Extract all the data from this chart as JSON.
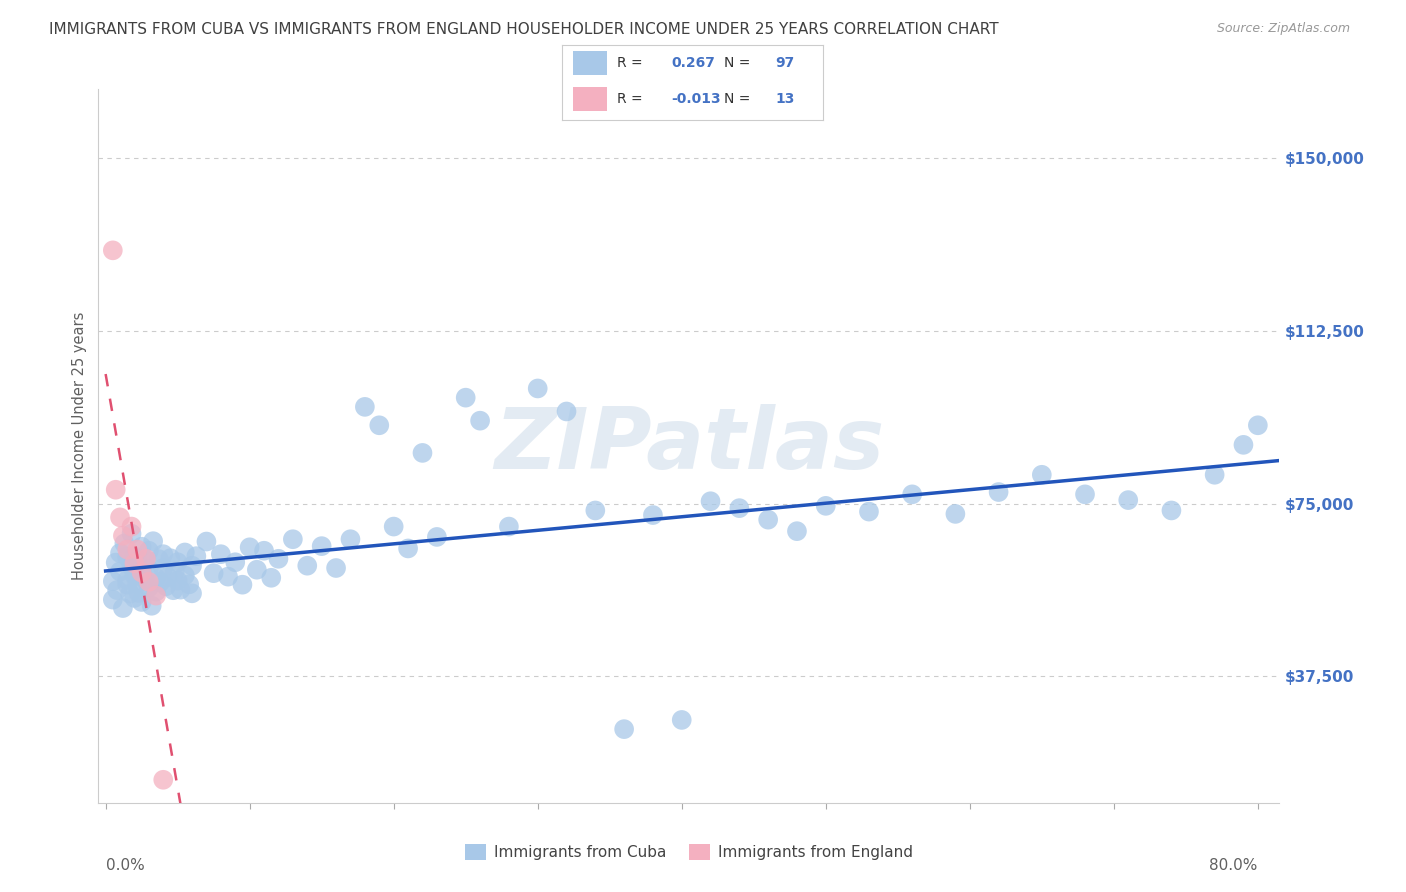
{
  "title": "IMMIGRANTS FROM CUBA VS IMMIGRANTS FROM ENGLAND HOUSEHOLDER INCOME UNDER 25 YEARS CORRELATION CHART",
  "source": "Source: ZipAtlas.com",
  "ylabel": "Householder Income Under 25 years",
  "xlabel": "",
  "xlim": [
    -0.005,
    0.815
  ],
  "ylim": [
    10000,
    165000
  ],
  "yticks": [
    37500,
    75000,
    112500,
    150000
  ],
  "ytick_labels": [
    "$37,500",
    "$75,000",
    "$112,500",
    "$150,000"
  ],
  "xtick_labels_left": "0.0%",
  "xtick_labels_right": "80.0%",
  "cuba_R": 0.267,
  "cuba_N": 97,
  "england_R": -0.013,
  "england_N": 13,
  "cuba_color": "#a8c8e8",
  "england_color": "#f4b0c0",
  "cuba_line_color": "#2255bb",
  "england_line_color": "#e05070",
  "watermark": "ZIPatlas",
  "background_color": "#ffffff",
  "grid_color": "#cccccc",
  "title_color": "#404040",
  "axis_label_color": "#606060",
  "ytick_color": "#4472c4",
  "legend_R_color": "#4472c4",
  "legend_N_color": "#4472c4",
  "legend_label_color": "#333333"
}
